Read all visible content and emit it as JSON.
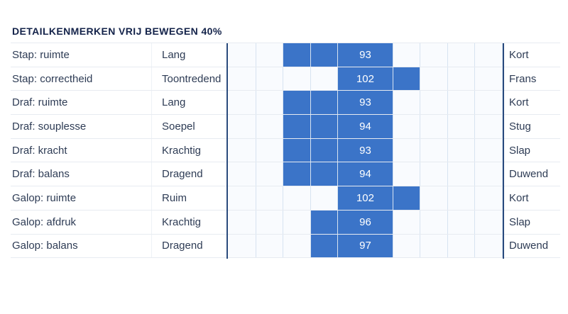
{
  "title": "DETAILKENMERKEN VRIJ BEWEGEN 40%",
  "colors": {
    "bar_fill": "#3b74c8",
    "axis_line": "#2a4b7d",
    "title_text": "#14234a",
    "label_text": "#2e3c55",
    "score_text": "#ffffff",
    "empty_cell": "#f9fbfe",
    "grid_border": "#d7e3f1"
  },
  "chart_data": {
    "type": "table",
    "title": "DETAILKENMERKEN VRIJ BEWEGEN 40%",
    "columns": [
      "trait",
      "left_term",
      "score",
      "right_term"
    ],
    "grid": {
      "cells_left_of_score": 4,
      "cells_right_of_score": 4
    },
    "rows": [
      {
        "trait": "Stap: ruimte",
        "left_term": "Lang",
        "right_term": "Kort",
        "score": 93,
        "cells_before": [
          0,
          0,
          1,
          1
        ],
        "cells_after": [
          0,
          0,
          0,
          0
        ]
      },
      {
        "trait": "Stap: correctheid",
        "left_term": "Toontredend",
        "right_term": "Frans",
        "score": 102,
        "cells_before": [
          0,
          0,
          0,
          0
        ],
        "cells_after": [
          1,
          0,
          0,
          0
        ]
      },
      {
        "trait": "Draf: ruimte",
        "left_term": "Lang",
        "right_term": "Kort",
        "score": 93,
        "cells_before": [
          0,
          0,
          1,
          1
        ],
        "cells_after": [
          0,
          0,
          0,
          0
        ]
      },
      {
        "trait": "Draf: souplesse",
        "left_term": "Soepel",
        "right_term": "Stug",
        "score": 94,
        "cells_before": [
          0,
          0,
          1,
          1
        ],
        "cells_after": [
          0,
          0,
          0,
          0
        ]
      },
      {
        "trait": "Draf: kracht",
        "left_term": "Krachtig",
        "right_term": "Slap",
        "score": 93,
        "cells_before": [
          0,
          0,
          1,
          1
        ],
        "cells_after": [
          0,
          0,
          0,
          0
        ]
      },
      {
        "trait": "Draf: balans",
        "left_term": "Dragend",
        "right_term": "Duwend",
        "score": 94,
        "cells_before": [
          0,
          0,
          1,
          1
        ],
        "cells_after": [
          0,
          0,
          0,
          0
        ]
      },
      {
        "trait": "Galop: ruimte",
        "left_term": "Ruim",
        "right_term": "Kort",
        "score": 102,
        "cells_before": [
          0,
          0,
          0,
          0
        ],
        "cells_after": [
          1,
          0,
          0,
          0
        ]
      },
      {
        "trait": "Galop: afdruk",
        "left_term": "Krachtig",
        "right_term": "Slap",
        "score": 96,
        "cells_before": [
          0,
          0,
          0,
          1
        ],
        "cells_after": [
          0,
          0,
          0,
          0
        ]
      },
      {
        "trait": "Galop: balans",
        "left_term": "Dragend",
        "right_term": "Duwend",
        "score": 97,
        "cells_before": [
          0,
          0,
          0,
          1
        ],
        "cells_after": [
          0,
          0,
          0,
          0
        ]
      }
    ]
  }
}
